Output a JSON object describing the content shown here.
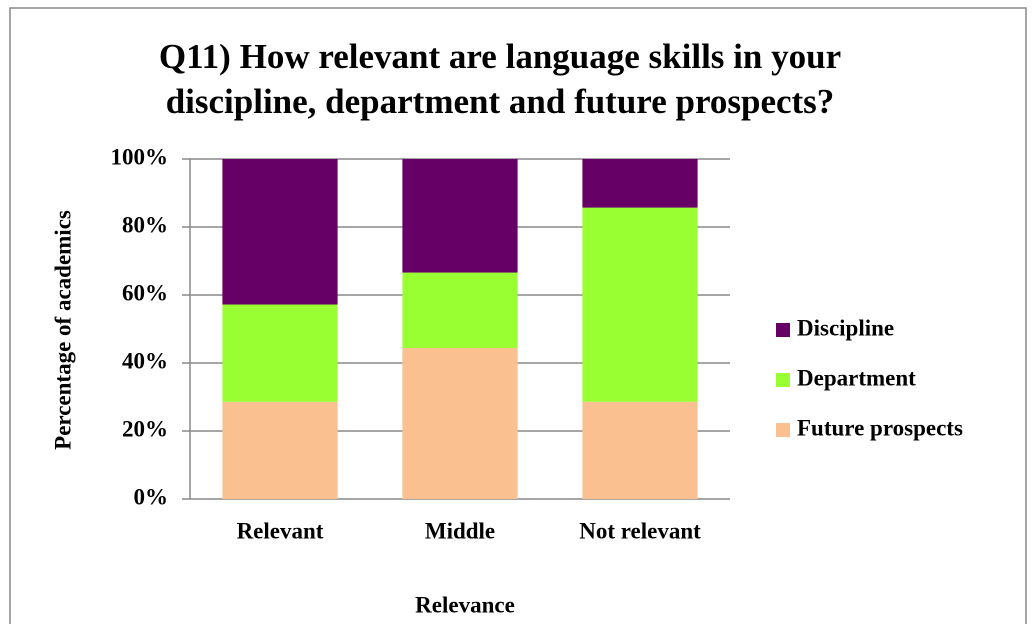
{
  "chart_data": {
    "type": "stacked_bar",
    "title": [
      "Q11) How relevant are language skills in your",
      "discipline, department and future prospects?"
    ],
    "x_label": "Relevance",
    "y_label": "Percentage of academics",
    "categories": [
      "Relevant",
      "Middle",
      "Not relevant"
    ],
    "series": [
      {
        "name": "Future prospects",
        "color": "#fac090",
        "values": [
          28.6,
          44.4,
          28.6
        ]
      },
      {
        "name": "Department",
        "color": "#99ff33",
        "values": [
          28.6,
          22.2,
          57.1
        ]
      },
      {
        "name": "Discipline",
        "color": "#660066",
        "values": [
          42.8,
          33.4,
          14.3
        ]
      }
    ],
    "ylim": [
      0,
      100
    ],
    "yticks": [
      {
        "value": 0,
        "label": "0%"
      },
      {
        "value": 20,
        "label": "20%"
      },
      {
        "value": 40,
        "label": "40%"
      },
      {
        "value": 60,
        "label": "60%"
      },
      {
        "value": 80,
        "label": "80%"
      },
      {
        "value": 100,
        "label": "100%"
      }
    ],
    "grid": true,
    "legend": "right"
  }
}
